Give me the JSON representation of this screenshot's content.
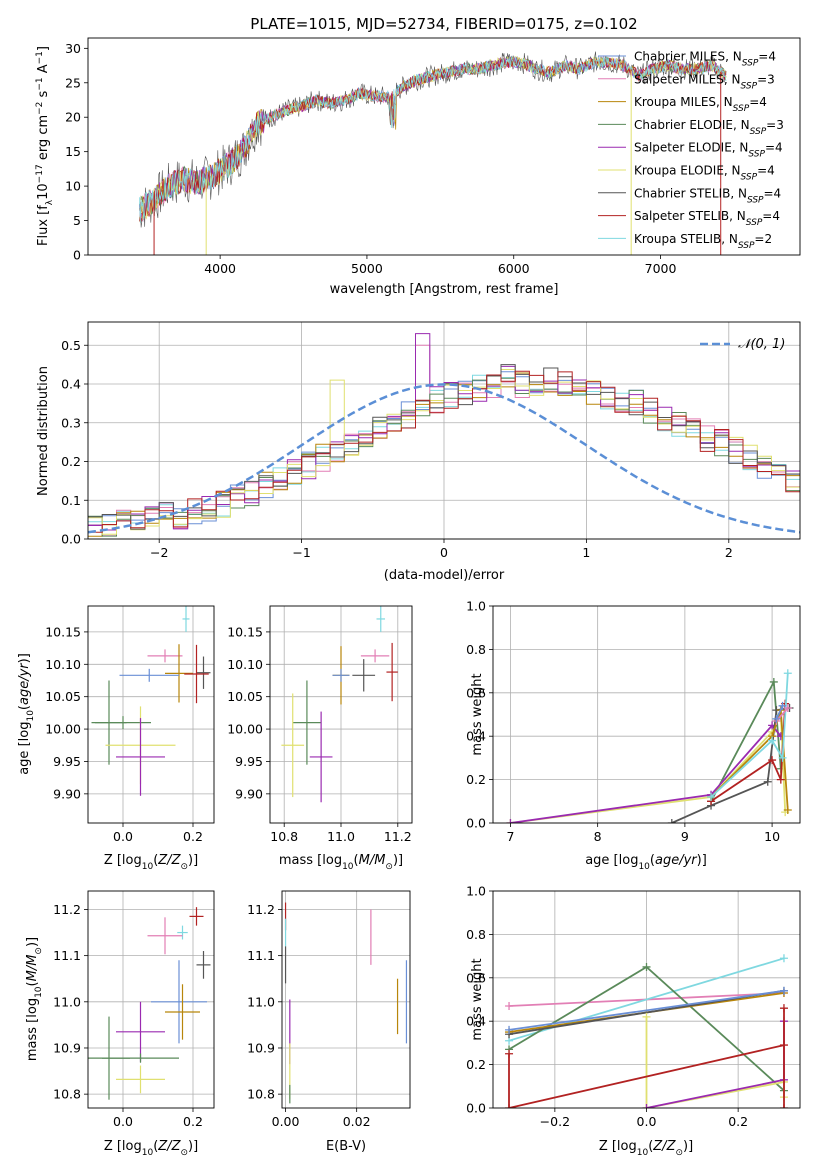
{
  "figure": {
    "title": "PLATE=1015, MJD=52734, FIBERID=0175, z=0.102"
  },
  "legend_models": [
    {
      "name": "Chabrier MILES",
      "nssp": "4",
      "color": "#6a8fd6"
    },
    {
      "name": "Salpeter MILES",
      "nssp": "3",
      "color": "#e27fb5"
    },
    {
      "name": "Kroupa MILES",
      "nssp": "4",
      "color": "#b8860b"
    },
    {
      "name": "Chabrier ELODIE",
      "nssp": "3",
      "color": "#5a8a5a"
    },
    {
      "name": "Salpeter ELODIE",
      "nssp": "4",
      "color": "#9a2ab0"
    },
    {
      "name": "Kroupa ELODIE",
      "nssp": "4",
      "color": "#e0e070"
    },
    {
      "name": "Chabrier STELIB",
      "nssp": "4",
      "color": "#555555"
    },
    {
      "name": "Salpeter STELIB",
      "nssp": "4",
      "color": "#b22222"
    },
    {
      "name": "Kroupa STELIB",
      "nssp": "2",
      "color": "#7fd8e0"
    }
  ],
  "chart_data": [
    {
      "id": "spectrum",
      "type": "line",
      "title": "PLATE=1015, MJD=52734, FIBERID=0175, z=0.102",
      "xlabel": "wavelength [Angstrom, rest frame]",
      "ylabel": "Flux [f_λ 10^-17 erg cm^-2 s^-1 A^-1]",
      "xlim": [
        3100,
        7950
      ],
      "ylim": [
        0,
        31.5
      ],
      "xticks": [
        4000,
        5000,
        6000,
        7000
      ],
      "yticks": [
        0,
        5,
        10,
        15,
        20,
        25,
        30
      ],
      "legend": "top-right",
      "x": [
        3450,
        3550,
        3650,
        3750,
        3850,
        3950,
        4050,
        4150,
        4250,
        4350,
        4450,
        4550,
        4650,
        4750,
        4850,
        4950,
        5050,
        5150,
        5250,
        5350,
        5450,
        5550,
        5650,
        5750,
        5850,
        5950,
        6050,
        6150,
        6250,
        6350,
        6450,
        6550,
        6650,
        6750,
        6850,
        6950,
        7050,
        7150,
        7250,
        7350,
        7450
      ],
      "y": [
        6.5,
        8,
        10,
        11,
        10.5,
        11.5,
        13,
        15,
        19,
        20,
        21,
        21.5,
        22.5,
        22,
        22.5,
        23.5,
        23,
        23,
        24.5,
        25.5,
        26,
        26.5,
        27,
        27,
        27.5,
        28,
        28,
        27,
        26.5,
        27.5,
        27,
        28,
        28,
        27.5,
        26,
        27,
        27.5,
        27,
        27,
        27.5,
        26
      ],
      "noise_amplitude": 3.5
    },
    {
      "id": "residuals",
      "type": "step",
      "xlabel": "(data-model)/error",
      "ylabel": "Normed distribution",
      "xlim": [
        -2.5,
        2.5
      ],
      "ylim": [
        0,
        0.56
      ],
      "xticks": [
        -2,
        -1,
        0,
        1,
        2
      ],
      "yticks": [
        0.0,
        0.1,
        0.2,
        0.3,
        0.4,
        0.5
      ],
      "legend": "top-right",
      "reference_label": "𝒩(0, 1)",
      "reference_color": "#5b8fd6",
      "bin_width": 0.1,
      "bin_start": -2.5,
      "values": [
        0.03,
        0.03,
        0.04,
        0.04,
        0.05,
        0.06,
        0.06,
        0.07,
        0.08,
        0.09,
        0.11,
        0.12,
        0.14,
        0.15,
        0.17,
        0.19,
        0.21,
        0.22,
        0.24,
        0.26,
        0.28,
        0.3,
        0.32,
        0.34,
        0.36,
        0.37,
        0.38,
        0.39,
        0.4,
        0.42,
        0.4,
        0.4,
        0.41,
        0.4,
        0.39,
        0.38,
        0.37,
        0.36,
        0.35,
        0.33,
        0.31,
        0.3,
        0.28,
        0.26,
        0.25,
        0.23,
        0.21,
        0.19,
        0.17,
        0.15
      ]
    },
    {
      "id": "age-vs-Z",
      "type": "scatter-errorbar",
      "xlabel": "Z [log10(Z/Z⊙)]",
      "ylabel": "age [log10(age/yr)]",
      "xlim": [
        -0.1,
        0.26
      ],
      "ylim": [
        9.855,
        10.19
      ],
      "xticks": [
        0.0,
        0.2
      ],
      "yticks": [
        9.9,
        9.95,
        10.0,
        10.05,
        10.1,
        10.15
      ],
      "points": [
        {
          "x": 0.18,
          "xerr": 0.01,
          "y": 10.17,
          "yerr": 0.02,
          "color": "#7fd8e0"
        },
        {
          "x": 0.12,
          "xerr": 0.05,
          "y": 10.113,
          "yerr": 0.01,
          "color": "#e27fb5"
        },
        {
          "x": 0.16,
          "xerr": 0.04,
          "y": 10.086,
          "yerr": 0.045,
          "color": "#b8860b"
        },
        {
          "x": 0.23,
          "xerr": 0.02,
          "y": 10.087,
          "yerr": 0.025,
          "color": "#555555"
        },
        {
          "x": 0.21,
          "xerr": 0.035,
          "y": 10.085,
          "yerr": 0.045,
          "color": "#b22222"
        },
        {
          "x": 0.075,
          "xerr": 0.085,
          "y": 10.083,
          "yerr": 0.01,
          "color": "#6a8fd6"
        },
        {
          "x": -0.04,
          "xerr": 0.05,
          "y": 10.01,
          "yerr": 0.065,
          "color": "#5a8a5a"
        },
        {
          "x": 0.0,
          "xerr": 0.08,
          "y": 10.01,
          "yerr": 0.01,
          "color": "#5a8a5a"
        },
        {
          "x": 0.05,
          "xerr": 0.1,
          "y": 9.975,
          "yerr": 0.06,
          "color": "#e0e070"
        },
        {
          "x": 0.05,
          "xerr": 0.07,
          "y": 9.957,
          "yerr": 0.06,
          "color": "#9a2ab0"
        }
      ]
    },
    {
      "id": "age-vs-mass",
      "type": "scatter-errorbar",
      "xlabel": "mass [log10(M/M⊙)]",
      "ylabel": "",
      "xlim": [
        10.75,
        11.25
      ],
      "ylim": [
        9.855,
        10.19
      ],
      "xticks": [
        10.8,
        11.0,
        11.2
      ],
      "yticks": [
        9.9,
        9.95,
        10.0,
        10.05,
        10.1,
        10.15
      ],
      "points": [
        {
          "x": 11.14,
          "xerr": 0.015,
          "y": 10.17,
          "yerr": 0.02,
          "color": "#7fd8e0"
        },
        {
          "x": 11.12,
          "xerr": 0.05,
          "y": 10.113,
          "yerr": 0.01,
          "color": "#e27fb5"
        },
        {
          "x": 11.0,
          "xerr": 0.03,
          "y": 10.083,
          "yerr": 0.045,
          "color": "#b8860b"
        },
        {
          "x": 11.08,
          "xerr": 0.04,
          "y": 10.083,
          "yerr": 0.025,
          "color": "#555555"
        },
        {
          "x": 11.18,
          "xerr": 0.02,
          "y": 10.088,
          "yerr": 0.045,
          "color": "#b22222"
        },
        {
          "x": 11.0,
          "xerr": 0.03,
          "y": 10.083,
          "yerr": 0.01,
          "color": "#6a8fd6"
        },
        {
          "x": 10.88,
          "xerr": 0.05,
          "y": 10.01,
          "yerr": 0.065,
          "color": "#5a8a5a"
        },
        {
          "x": 10.83,
          "xerr": 0.04,
          "y": 9.975,
          "yerr": 0.08,
          "color": "#e0e070"
        },
        {
          "x": 10.93,
          "xerr": 0.04,
          "y": 9.957,
          "yerr": 0.07,
          "color": "#9a2ab0"
        }
      ]
    },
    {
      "id": "massweight-vs-age",
      "type": "line",
      "xlabel": "age [log10(age/yr)]",
      "ylabel": "mass weight",
      "xlim": [
        6.8,
        10.32
      ],
      "ylim": [
        0,
        1.0
      ],
      "xticks": [
        7,
        8,
        9,
        10
      ],
      "yticks": [
        0.0,
        0.2,
        0.4,
        0.6,
        0.8,
        1.0
      ],
      "series": [
        {
          "color": "#5a8a5a",
          "x": [
            9.3,
            10.02,
            10.1
          ],
          "y": [
            0.1,
            0.65,
            0.25
          ]
        },
        {
          "color": "#e0e070",
          "x": [
            7.0,
            9.3,
            10.0,
            10.1,
            10.15
          ],
          "y": [
            0.0,
            0.12,
            0.42,
            0.5,
            0.05
          ]
        },
        {
          "color": "#9a2ab0",
          "x": [
            7.0,
            9.3,
            10.0,
            10.1
          ],
          "y": [
            0.0,
            0.13,
            0.45,
            0.4
          ]
        },
        {
          "color": "#555555",
          "x": [
            8.85,
            9.3,
            9.95,
            10.05,
            10.2
          ],
          "y": [
            0.0,
            0.08,
            0.19,
            0.52,
            0.53
          ]
        },
        {
          "color": "#b22222",
          "x": [
            9.3,
            10.0,
            10.1,
            10.15
          ],
          "y": [
            0.1,
            0.29,
            0.2,
            0.55
          ]
        },
        {
          "color": "#b8860b",
          "x": [
            9.3,
            10.0,
            10.1,
            10.18
          ],
          "y": [
            0.12,
            0.4,
            0.52,
            0.06
          ]
        },
        {
          "color": "#7fd8e0",
          "x": [
            9.3,
            10.0,
            10.12,
            10.18
          ],
          "y": [
            0.12,
            0.38,
            0.3,
            0.69
          ]
        },
        {
          "color": "#e27fb5",
          "x": [
            10.05,
            10.18
          ],
          "y": [
            0.47,
            0.53
          ]
        },
        {
          "color": "#6a8fd6",
          "x": [
            10.05,
            10.12
          ],
          "y": [
            0.48,
            0.54
          ]
        }
      ]
    },
    {
      "id": "mass-vs-Z",
      "type": "scatter-errorbar",
      "xlabel": "Z [log10(Z/Z⊙)]",
      "ylabel": "mass [log10(M/M⊙)]",
      "xlim": [
        -0.1,
        0.26
      ],
      "ylim": [
        10.77,
        11.24
      ],
      "xticks": [
        0.0,
        0.2
      ],
      "yticks": [
        10.8,
        10.9,
        11.0,
        11.1,
        11.2
      ],
      "points": [
        {
          "x": 0.21,
          "xerr": 0.02,
          "y": 11.185,
          "yerr": 0.02,
          "color": "#b22222"
        },
        {
          "x": 0.17,
          "xerr": 0.015,
          "y": 11.15,
          "yerr": 0.015,
          "color": "#7fd8e0"
        },
        {
          "x": 0.12,
          "xerr": 0.05,
          "y": 11.143,
          "yerr": 0.04,
          "color": "#e27fb5"
        },
        {
          "x": 0.23,
          "xerr": 0.02,
          "y": 11.08,
          "yerr": 0.03,
          "color": "#555555"
        },
        {
          "x": 0.16,
          "xerr": 0.08,
          "y": 11.0,
          "yerr": 0.09,
          "color": "#6a8fd6"
        },
        {
          "x": 0.17,
          "xerr": 0.05,
          "y": 10.978,
          "yerr": 0.06,
          "color": "#b8860b"
        },
        {
          "x": 0.05,
          "xerr": 0.07,
          "y": 10.935,
          "yerr": 0.065,
          "color": "#9a2ab0"
        },
        {
          "x": -0.04,
          "xerr": 0.06,
          "y": 10.878,
          "yerr": 0.09,
          "color": "#5a8a5a"
        },
        {
          "x": 0.05,
          "xerr": 0.11,
          "y": 10.878,
          "yerr": 0.01,
          "color": "#5a8a5a"
        },
        {
          "x": 0.05,
          "xerr": 0.07,
          "y": 10.832,
          "yerr": 0.03,
          "color": "#e0e070"
        }
      ]
    },
    {
      "id": "mass-vs-ebv",
      "type": "scatter-errorbar",
      "xlabel": "E(B-V)",
      "ylabel": "",
      "xlim": [
        -0.001,
        0.035
      ],
      "ylim": [
        10.77,
        11.24
      ],
      "xticks": [
        0.0,
        0.02
      ],
      "yticks": [
        10.8,
        10.9,
        11.0,
        11.1,
        11.2
      ],
      "points": [
        {
          "x": 0.0,
          "xerr": 0,
          "y": 11.185,
          "yerr": 0.03,
          "color": "#b22222"
        },
        {
          "x": 0.0,
          "xerr": 0,
          "y": 11.15,
          "yerr": 0.03,
          "color": "#7fd8e0"
        },
        {
          "x": 0.0,
          "xerr": 0,
          "y": 11.08,
          "yerr": 0.04,
          "color": "#555555"
        },
        {
          "x": 0.024,
          "xerr": 0,
          "y": 11.14,
          "yerr": 0.06,
          "color": "#e27fb5"
        },
        {
          "x": 0.034,
          "xerr": 0,
          "y": 11.0,
          "yerr": 0.09,
          "color": "#6a8fd6"
        },
        {
          "x": 0.0315,
          "xerr": 0,
          "y": 10.99,
          "yerr": 0.06,
          "color": "#b8860b"
        },
        {
          "x": 0.0012,
          "xerr": 0,
          "y": 10.935,
          "yerr": 0.07,
          "color": "#9a2ab0"
        },
        {
          "x": 0.0012,
          "xerr": 0,
          "y": 10.85,
          "yerr": 0.06,
          "color": "#e0e070"
        },
        {
          "x": 0.0012,
          "xerr": 0,
          "y": 10.8,
          "yerr": 0.02,
          "color": "#5a8a5a"
        }
      ]
    },
    {
      "id": "massweight-vs-Z",
      "type": "line",
      "xlabel": "Z [log10(Z/Z⊙)]",
      "ylabel": "mass weight",
      "xlim": [
        -0.335,
        0.335
      ],
      "ylim": [
        0,
        1.0
      ],
      "xticks": [
        -0.2,
        0.0,
        0.2
      ],
      "yticks": [
        0.0,
        0.2,
        0.4,
        0.6,
        0.8,
        1.0
      ],
      "series": [
        {
          "color": "#e27fb5",
          "x": [
            -0.3,
            0.3
          ],
          "y": [
            0.47,
            0.53
          ]
        },
        {
          "color": "#7fd8e0",
          "x": [
            -0.3,
            0.3
          ],
          "y": [
            0.31,
            0.69
          ]
        },
        {
          "color": "#5a8a5a",
          "x": [
            -0.3,
            0.0,
            0.3
          ],
          "y": [
            0.27,
            0.65,
            0.08
          ]
        },
        {
          "color": "#b8860b",
          "x": [
            -0.3,
            0.3
          ],
          "y": [
            0.35,
            0.53
          ]
        },
        {
          "color": "#555555",
          "x": [
            -0.3,
            0.3
          ],
          "y": [
            0.34,
            0.54
          ]
        },
        {
          "color": "#e0e070",
          "x": [
            0.0,
            0.0,
            0.3,
            0.3
          ],
          "y": [
            0.42,
            0.0,
            0.12,
            0.05
          ]
        },
        {
          "color": "#9a2ab0",
          "x": [
            0.0,
            0.3,
            0.3
          ],
          "y": [
            0.0,
            0.13,
            0.4
          ]
        },
        {
          "color": "#b22222",
          "x": [
            -0.3,
            -0.3,
            0.3,
            0.3,
            0.3
          ],
          "y": [
            0.25,
            0.0,
            0.29,
            0.46,
            0.0
          ]
        },
        {
          "color": "#6a8fd6",
          "x": [
            -0.3,
            0.3
          ],
          "y": [
            0.36,
            0.54
          ]
        }
      ]
    }
  ]
}
